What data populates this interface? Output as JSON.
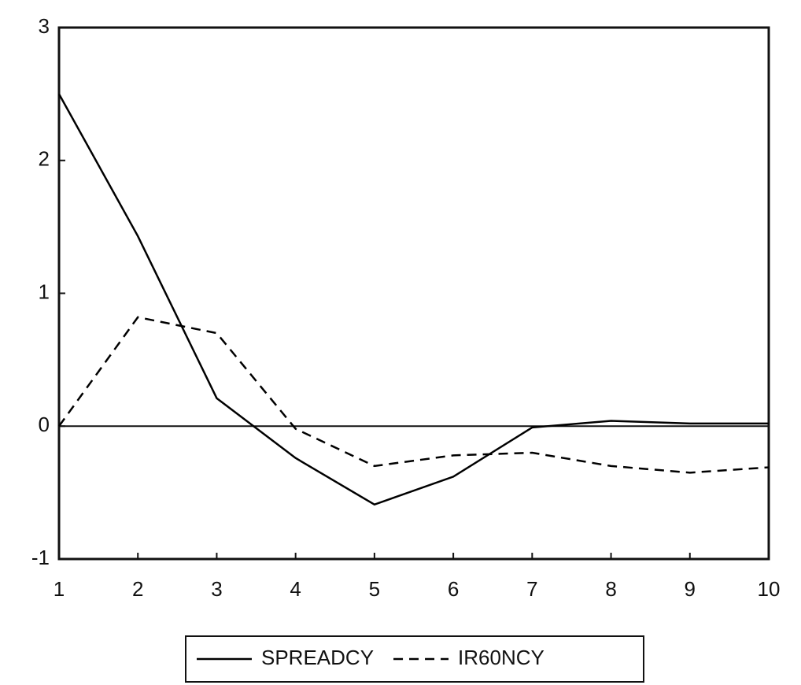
{
  "chart_data": {
    "type": "line",
    "x": [
      1,
      2,
      3,
      4,
      5,
      6,
      7,
      8,
      9,
      10
    ],
    "series": [
      {
        "name": "SPREADCY",
        "color": "#000000",
        "dash": "solid",
        "values": [
          2.5,
          1.43,
          0.21,
          -0.24,
          -0.59,
          -0.38,
          -0.01,
          0.04,
          0.02,
          0.02
        ]
      },
      {
        "name": "IR60NCY",
        "color": "#000000",
        "dash": "dashed",
        "values": [
          0,
          0.82,
          0.7,
          -0.02,
          -0.3,
          -0.22,
          -0.2,
          -0.3,
          -0.35,
          -0.31
        ]
      }
    ],
    "xlim": [
      1,
      10
    ],
    "xticks": [
      1,
      2,
      3,
      4,
      5,
      6,
      7,
      8,
      9,
      10
    ],
    "ylim": [
      -1,
      3
    ],
    "yticks": [
      -1,
      0,
      1,
      2,
      3
    ],
    "zero_line": true,
    "legend": "bottom"
  }
}
